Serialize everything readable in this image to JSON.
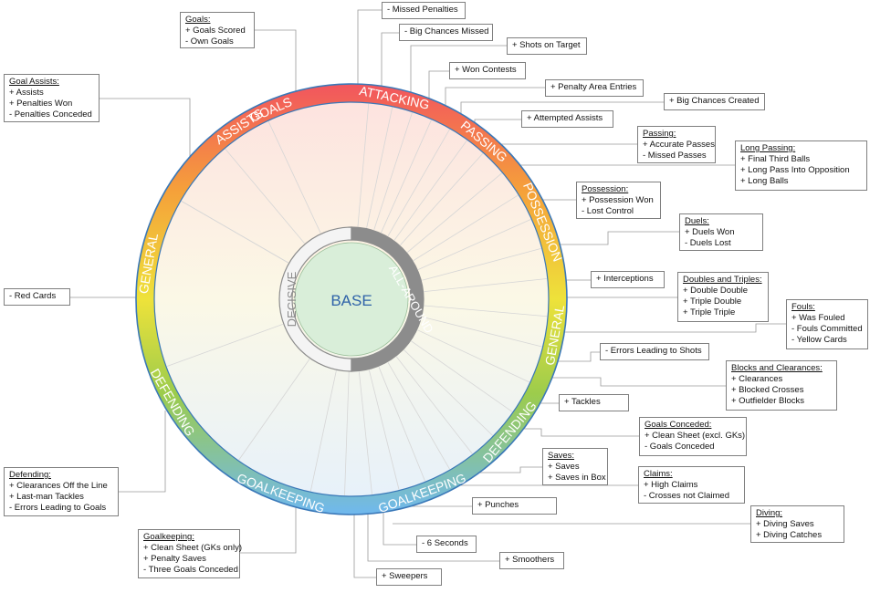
{
  "center": {
    "label": "BASE"
  },
  "inner_ring": {
    "decisive": "DECISIVE",
    "all_around": "ALL-AROUND"
  },
  "outer_ring": [
    "GOALS",
    "ATTACKING",
    "PASSING",
    "POSSESSION",
    "GENERAL",
    "DEFENDING",
    "GOALKEEPING",
    "GOALKEEPING",
    "DEFENDING",
    "GENERAL",
    "ASSISTS"
  ],
  "colors": {
    "ring_blue": "#3a78b8",
    "inner_grey": "#8c8c8c",
    "base_fill": "#d9eed9",
    "base_text": "#2e62a8"
  },
  "boxes": [
    {
      "id": "goals",
      "title": "Goals:",
      "lines": [
        "+ Goals Scored",
        "- Own Goals"
      ]
    },
    {
      "id": "goal-assists",
      "title": "Goal Assists:",
      "lines": [
        "+ Assists",
        "+ Penalties Won",
        "- Penalties Conceded"
      ]
    },
    {
      "id": "red-cards",
      "title": "",
      "lines": [
        "- Red Cards"
      ]
    },
    {
      "id": "defending",
      "title": "Defending:",
      "lines": [
        "+ Clearances Off the Line",
        "+ Last-man Tackles",
        "- Errors Leading to Goals"
      ]
    },
    {
      "id": "goalkeeping",
      "title": "Goalkeeping:",
      "lines": [
        "+ Clean Sheet (GKs only)",
        "+ Penalty Saves",
        "- Three Goals Conceded"
      ]
    },
    {
      "id": "missed-penalties",
      "title": "",
      "lines": [
        "- Missed Penalties"
      ]
    },
    {
      "id": "big-chances-missed",
      "title": "",
      "lines": [
        "- Big Chances Missed"
      ]
    },
    {
      "id": "shots-on-target",
      "title": "",
      "lines": [
        "+ Shots on Target"
      ]
    },
    {
      "id": "won-contests",
      "title": "",
      "lines": [
        "+ Won Contests"
      ]
    },
    {
      "id": "penalty-area-entries",
      "title": "",
      "lines": [
        "+ Penalty Area Entries"
      ]
    },
    {
      "id": "big-chances-created",
      "title": "",
      "lines": [
        "+ Big Chances Created"
      ]
    },
    {
      "id": "attempted-assists",
      "title": "",
      "lines": [
        "+ Attempted Assists"
      ]
    },
    {
      "id": "passing",
      "title": "Passing:",
      "lines": [
        "+ Accurate Passes",
        "- Missed Passes"
      ]
    },
    {
      "id": "long-passing",
      "title": "Long Passing:",
      "lines": [
        "+ Final Third Balls",
        "+ Long Pass Into Opposition",
        "+ Long Balls"
      ]
    },
    {
      "id": "possession",
      "title": "Possession:",
      "lines": [
        "+ Possession Won",
        "- Lost Control"
      ]
    },
    {
      "id": "duels",
      "title": "Duels:",
      "lines": [
        "+ Duels Won",
        "- Duels Lost"
      ]
    },
    {
      "id": "interceptions",
      "title": "",
      "lines": [
        "+ Interceptions"
      ]
    },
    {
      "id": "doubles-triples",
      "title": "Doubles and Triples:",
      "lines": [
        "+ Double Double",
        "+ Triple Double",
        "+ Triple Triple"
      ]
    },
    {
      "id": "fouls",
      "title": "Fouls:",
      "lines": [
        "+ Was Fouled",
        "- Fouls Committed",
        "- Yellow Cards"
      ]
    },
    {
      "id": "errors-shots",
      "title": "",
      "lines": [
        "- Errors Leading to Shots"
      ]
    },
    {
      "id": "blocks-clearances",
      "title": "Blocks and Clearances:",
      "lines": [
        "+ Clearances",
        "+ Blocked Crosses",
        "+ Outfielder Blocks"
      ]
    },
    {
      "id": "tackles",
      "title": "",
      "lines": [
        "+ Tackles"
      ]
    },
    {
      "id": "goals-conceded",
      "title": "Goals Conceded:",
      "lines": [
        "+ Clean Sheet (excl. GKs)",
        "- Goals Conceded"
      ]
    },
    {
      "id": "saves",
      "title": "Saves:",
      "lines": [
        "+ Saves",
        "+ Saves in Box"
      ]
    },
    {
      "id": "claims",
      "title": "Claims:",
      "lines": [
        "+ High Claims",
        "- Crosses not Claimed"
      ]
    },
    {
      "id": "punches",
      "title": "",
      "lines": [
        "+ Punches"
      ]
    },
    {
      "id": "diving",
      "title": "Diving:",
      "lines": [
        "+ Diving Saves",
        "+ Diving Catches"
      ]
    },
    {
      "id": "six-seconds",
      "title": "",
      "lines": [
        "- 6 Seconds"
      ]
    },
    {
      "id": "smoothers",
      "title": "",
      "lines": [
        "+ Smoothers"
      ]
    },
    {
      "id": "sweepers",
      "title": "",
      "lines": [
        "+ Sweepers"
      ]
    }
  ]
}
